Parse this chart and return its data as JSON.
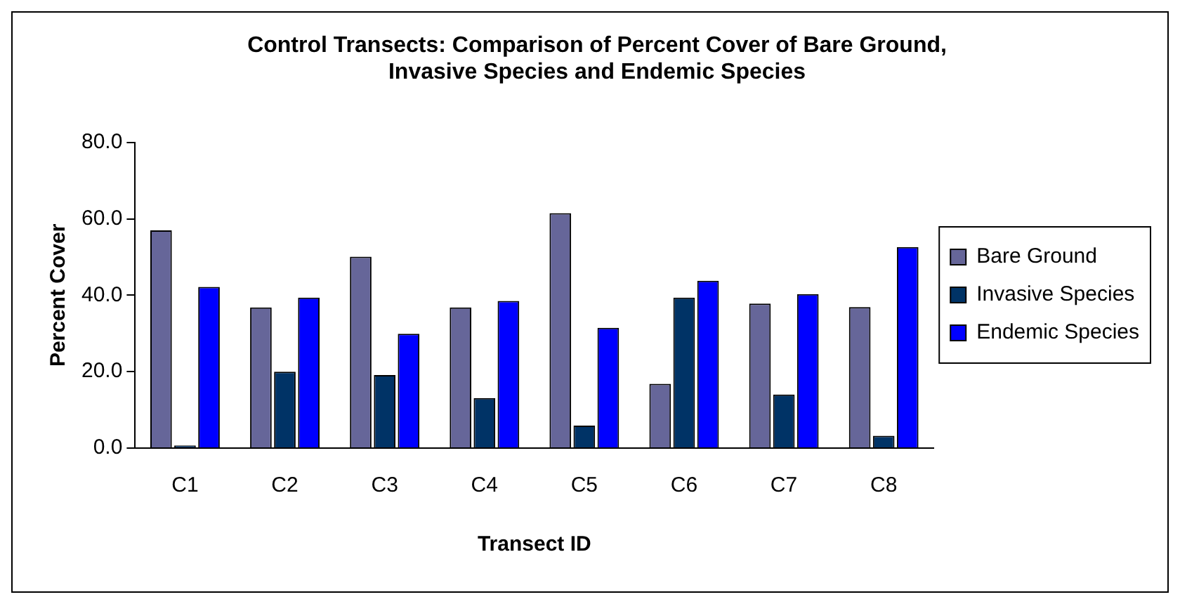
{
  "chart_data": {
    "type": "bar",
    "title": "Control Transects: Comparison of Percent Cover of Bare Ground, Invasive Species and Endemic Species",
    "xlabel": "Transect ID",
    "ylabel": "Percent Cover",
    "categories": [
      "C1",
      "C2",
      "C3",
      "C4",
      "C5",
      "C6",
      "C7",
      "C8"
    ],
    "series": [
      {
        "name": "Bare Ground",
        "color": "#666699",
        "values": [
          57,
          36.8,
          50.1,
          36.8,
          61.5,
          16.8,
          37.8,
          36.9
        ]
      },
      {
        "name": "Invasive Species",
        "color": "#003366",
        "values": [
          0.7,
          20,
          19.1,
          13.1,
          5.9,
          39.4,
          14,
          3.2
        ]
      },
      {
        "name": "Endemic Species",
        "color": "#0000ff",
        "values": [
          42.2,
          39.4,
          29.9,
          38.5,
          31.5,
          43.8,
          40.3,
          52.6
        ]
      }
    ],
    "ylim": [
      0,
      80
    ],
    "yticks": [
      {
        "value": 0,
        "label": "0.0"
      },
      {
        "value": 20,
        "label": "20.0"
      },
      {
        "value": 40,
        "label": "40.0"
      },
      {
        "value": 60,
        "label": "60.0"
      },
      {
        "value": 80,
        "label": "80.0"
      }
    ],
    "grid": false,
    "legend": "right"
  }
}
